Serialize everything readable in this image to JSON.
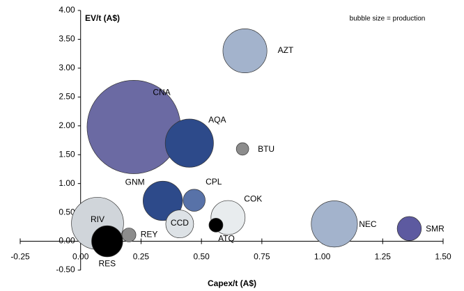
{
  "chart_data": {
    "type": "bubble",
    "x_label": "Capex/t (A$)",
    "y_label": "EV/t (A$)",
    "annotation": "bubble size = production",
    "xlim": [
      -0.25,
      1.5
    ],
    "xticks": [
      {
        "value": -0.25,
        "label": "-0.25"
      },
      {
        "value": 0,
        "label": "0.00"
      },
      {
        "value": 0.25,
        "label": "0.25"
      },
      {
        "value": 0.5,
        "label": "0.50"
      },
      {
        "value": 0.75,
        "label": "0.75"
      },
      {
        "value": 1,
        "label": "1.00"
      },
      {
        "value": 1.25,
        "label": "1.25"
      },
      {
        "value": 1.5,
        "label": "1.50"
      }
    ],
    "ylim": [
      -0.5,
      4
    ],
    "yticks": [
      {
        "value": -0.5,
        "label": "-0.50"
      },
      {
        "value": 0,
        "label": "0.00"
      },
      {
        "value": 0.5,
        "label": "0.50"
      },
      {
        "value": 1,
        "label": "1.00"
      },
      {
        "value": 1.5,
        "label": "1.50"
      },
      {
        "value": 2,
        "label": "2.00"
      },
      {
        "value": 2.5,
        "label": "2.50"
      },
      {
        "value": 3,
        "label": "3.00"
      },
      {
        "value": 3.5,
        "label": "3.50"
      },
      {
        "value": 4,
        "label": "4.00"
      }
    ],
    "grid": false,
    "points": [
      {
        "name": "AZT",
        "x": 0.68,
        "y": 3.3,
        "size": 10,
        "color": "#a3b3cc"
      },
      {
        "name": "CNA",
        "x": 0.22,
        "y": 1.98,
        "size": 45,
        "color": "#6b6aa3"
      },
      {
        "name": "AQA",
        "x": 0.45,
        "y": 1.7,
        "size": 12,
        "color": "#2d4a8a"
      },
      {
        "name": "BTU",
        "x": 0.67,
        "y": 1.6,
        "size": 0.8,
        "color": "#8c8c8c"
      },
      {
        "name": "GNM",
        "x": 0.34,
        "y": 0.7,
        "size": 8,
        "color": "#2d4a8a"
      },
      {
        "name": "CPL",
        "x": 0.47,
        "y": 0.71,
        "size": 2.5,
        "color": "#5872a8"
      },
      {
        "name": "COK",
        "x": 0.61,
        "y": 0.41,
        "size": 6,
        "color": "#e8ecee"
      },
      {
        "name": "RIV",
        "x": 0.07,
        "y": 0.31,
        "size": 14,
        "color": "#d0d5da"
      },
      {
        "name": "CCD",
        "x": 0.41,
        "y": 0.3,
        "size": 4,
        "color": "#dde2e6"
      },
      {
        "name": "ATQ",
        "x": 0.56,
        "y": 0.28,
        "size": 1,
        "color": "#000000"
      },
      {
        "name": "REY",
        "x": 0.2,
        "y": 0.11,
        "size": 1,
        "color": "#8c8c8c"
      },
      {
        "name": "RES",
        "x": 0.11,
        "y": 0.0,
        "size": 5,
        "color": "#000000"
      },
      {
        "name": "NEC",
        "x": 1.05,
        "y": 0.3,
        "size": 11,
        "color": "#a3b3cc"
      },
      {
        "name": "SMR",
        "x": 1.36,
        "y": 0.22,
        "size": 3,
        "color": "#5d5aa0"
      }
    ]
  }
}
